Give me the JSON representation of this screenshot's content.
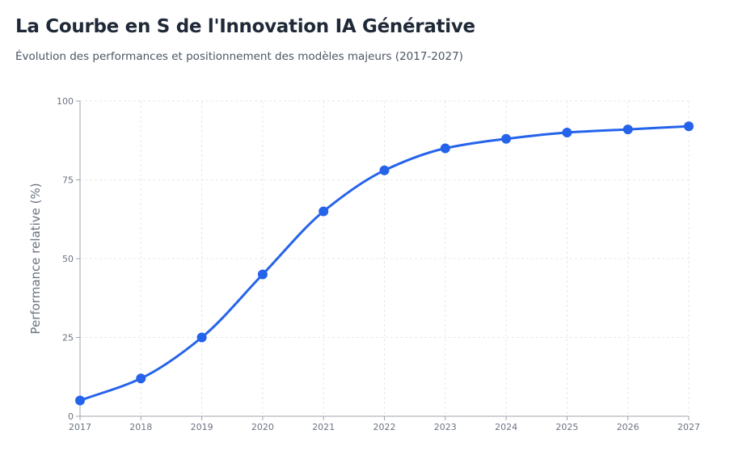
{
  "header": {
    "title": "La Courbe en S de l'Innovation IA Générative",
    "subtitle": "Évolution des performances et positionnement des modèles majeurs (2017-2027)"
  },
  "chart_data": {
    "type": "line",
    "title": "La Courbe en S de l'Innovation IA Générative",
    "subtitle": "Évolution des performances et positionnement des modèles majeurs (2017-2027)",
    "xlabel": "",
    "ylabel": "Performance relative (%)",
    "x": [
      2017,
      2018,
      2019,
      2020,
      2021,
      2022,
      2023,
      2024,
      2025,
      2026,
      2027
    ],
    "series": [
      {
        "name": "Performance relative",
        "values": [
          5,
          12,
          25,
          45,
          65,
          78,
          85,
          88,
          90,
          91,
          92
        ]
      }
    ],
    "xlim": [
      2017,
      2027
    ],
    "ylim": [
      0,
      100
    ],
    "yticks": [
      0,
      25,
      50,
      75,
      100
    ],
    "grid": true,
    "legend": "none",
    "colors": {
      "line": "#2563eb",
      "point": "#2563eb",
      "grid": "#e5e7eb",
      "axis": "#9ca3af",
      "text": "#6b7280"
    }
  }
}
